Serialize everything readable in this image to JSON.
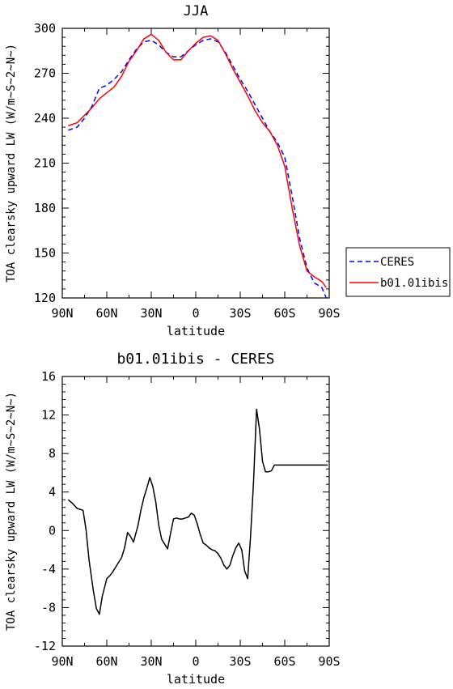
{
  "chart_data": [
    {
      "type": "line",
      "title": "JJA",
      "xlabel": "latitude",
      "ylabel": "TOA clearsky upward LW (W/m~S~2~N~)",
      "xlim": [
        90,
        -90
      ],
      "ylim": [
        120,
        300
      ],
      "x_ticks": [
        90,
        60,
        30,
        0,
        -30,
        -60,
        -90
      ],
      "x_tick_labels": [
        "90N",
        "60N",
        "30N",
        "0",
        "30S",
        "60S",
        "90S"
      ],
      "y_ticks": [
        120,
        150,
        180,
        210,
        240,
        270,
        300
      ],
      "y_tick_labels": [
        "120",
        "150",
        "180",
        "210",
        "240",
        "270",
        "300"
      ],
      "legend_position": "outside-right",
      "series": [
        {
          "name": "CERES",
          "color": "#0000ff",
          "dash": "dashed",
          "x": [
            86,
            80,
            75,
            70,
            65,
            60,
            55,
            50,
            45,
            40,
            35,
            30,
            25,
            20,
            15,
            10,
            5,
            0,
            -5,
            -10,
            -15,
            -20,
            -25,
            -30,
            -35,
            -40,
            -45,
            -50,
            -55,
            -60,
            -65,
            -70,
            -75,
            -80,
            -85,
            -88
          ],
          "y": [
            232,
            234,
            240,
            248,
            260,
            262,
            266,
            271,
            279,
            286,
            291,
            292,
            289,
            284,
            281,
            281,
            285,
            289,
            292,
            293,
            291,
            284,
            275,
            266,
            258,
            249,
            240,
            231,
            224,
            214,
            188,
            160,
            140,
            130,
            127,
            120
          ]
        },
        {
          "name": "b01.01ibis",
          "color": "#ff0000",
          "dash": "solid",
          "x": [
            86,
            80,
            75,
            70,
            65,
            60,
            55,
            50,
            45,
            40,
            35,
            30,
            25,
            20,
            15,
            10,
            5,
            0,
            -5,
            -10,
            -15,
            -20,
            -25,
            -30,
            -35,
            -40,
            -45,
            -50,
            -55,
            -60,
            -65,
            -70,
            -75,
            -80,
            -85,
            -88
          ],
          "y": [
            235,
            237,
            242,
            247,
            253,
            257,
            261,
            268,
            278,
            285,
            293,
            296,
            292,
            284,
            279,
            279,
            285,
            290,
            294,
            295,
            292,
            283,
            273,
            264,
            255,
            245,
            237,
            231,
            222,
            208,
            180,
            155,
            138,
            134,
            131,
            127
          ]
        }
      ]
    },
    {
      "type": "line",
      "title": "b01.01ibis - CERES",
      "xlabel": "latitude",
      "ylabel": "TOA clearsky upward LW (W/m~S~2~N~)",
      "xlim": [
        90,
        -90
      ],
      "ylim": [
        -12,
        16
      ],
      "x_ticks": [
        90,
        60,
        30,
        0,
        -30,
        -60,
        -90
      ],
      "x_tick_labels": [
        "90N",
        "60N",
        "30N",
        "0",
        "30S",
        "60S",
        "90S"
      ],
      "y_ticks": [
        -12,
        -8,
        -4,
        0,
        4,
        8,
        12,
        16
      ],
      "y_tick_labels": [
        "-12",
        "-8",
        "-4",
        "0",
        "4",
        "8",
        "12",
        "16"
      ],
      "series": [
        {
          "color": "#000000",
          "dash": "solid",
          "x": [
            86,
            83,
            80,
            78,
            76,
            74,
            72,
            69,
            67,
            65,
            63,
            60,
            58,
            56,
            54,
            52,
            50,
            48,
            46,
            44,
            42,
            39,
            37,
            35,
            33,
            31,
            29,
            27,
            25,
            23,
            21,
            19,
            17,
            15,
            13,
            11,
            9,
            7,
            5,
            3,
            1,
            -1,
            -3,
            -5,
            -7,
            -9,
            -11,
            -13,
            -15,
            -17,
            -19,
            -21,
            -23,
            -25,
            -27,
            -29,
            -31,
            -33,
            -35,
            -37,
            -39,
            -41,
            -43,
            -45,
            -47,
            -49,
            -51,
            -53,
            -55,
            -57,
            -59,
            -61,
            -63,
            -65,
            -67,
            -69,
            -71,
            -73,
            -75,
            -77,
            -79,
            -81,
            -83,
            -85,
            -87,
            -89
          ],
          "y": [
            3.2,
            2.8,
            2.3,
            2.2,
            2.1,
            0.1,
            -3.0,
            -6.3,
            -8.1,
            -8.7,
            -6.8,
            -5.0,
            -4.7,
            -4.3,
            -3.8,
            -3.3,
            -2.8,
            -1.8,
            -0.2,
            -0.6,
            -1.2,
            0.5,
            2.1,
            3.4,
            4.4,
            5.5,
            4.6,
            3.0,
            0.6,
            -0.9,
            -1.4,
            -1.9,
            -0.3,
            1.2,
            1.3,
            1.2,
            1.2,
            1.3,
            1.4,
            1.8,
            1.6,
            0.7,
            -0.4,
            -1.3,
            -1.5,
            -1.8,
            -2.0,
            -2.1,
            -2.4,
            -2.9,
            -3.6,
            -4.0,
            -3.6,
            -2.6,
            -1.8,
            -1.3,
            -2.0,
            -4.2,
            -5.0,
            -0.5,
            5.2,
            12.6,
            10.5,
            7.2,
            6.1,
            6.1,
            6.2,
            6.8,
            6.8,
            6.8,
            6.8,
            6.8,
            6.8,
            6.8,
            6.8,
            6.8,
            6.8,
            6.8,
            6.8,
            6.8,
            6.8,
            6.8,
            6.8,
            6.8,
            6.8,
            6.8
          ]
        }
      ]
    }
  ]
}
